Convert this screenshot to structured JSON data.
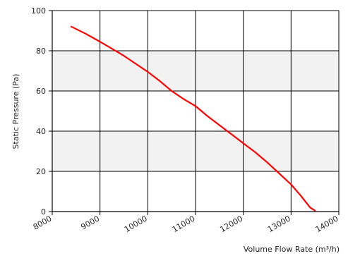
{
  "chart_data": {
    "type": "line",
    "xlabel": "Volume Flow Rate (m³/h)",
    "ylabel": "Static Pressure (Pa)",
    "xlim": [
      8000,
      14000
    ],
    "ylim": [
      0,
      100
    ],
    "x_ticks": [
      "8000",
      "9000",
      "10000",
      "11000",
      "12000",
      "13000",
      "14000"
    ],
    "y_ticks": [
      "0",
      "20",
      "40",
      "60",
      "80",
      "100"
    ],
    "grid": true,
    "band_color": "#f2f2f2",
    "series": [
      {
        "color": "#ff0000",
        "points": [
          [
            8400,
            92
          ],
          [
            8700,
            88.5
          ],
          [
            9000,
            84.5
          ],
          [
            9250,
            81
          ],
          [
            9500,
            77.5
          ],
          [
            9750,
            73.5
          ],
          [
            10000,
            69.5
          ],
          [
            10250,
            65
          ],
          [
            10500,
            60
          ],
          [
            10750,
            56
          ],
          [
            11000,
            52.5
          ],
          [
            11250,
            47.5
          ],
          [
            11500,
            43
          ],
          [
            11750,
            38.5
          ],
          [
            12000,
            34
          ],
          [
            12250,
            29.5
          ],
          [
            12500,
            24.5
          ],
          [
            12750,
            19
          ],
          [
            13000,
            13.5
          ],
          [
            13200,
            8
          ],
          [
            13400,
            2
          ],
          [
            13500,
            0.5
          ]
        ]
      }
    ]
  }
}
